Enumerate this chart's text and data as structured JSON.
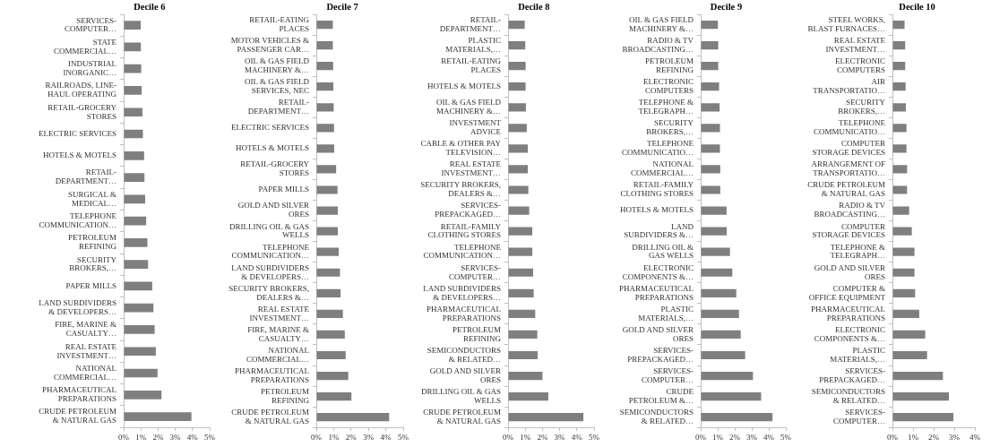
{
  "chart_data": [
    {
      "type": "bar",
      "orientation": "horizontal",
      "title": "Decile 6",
      "categories": [
        "SERVICES-COMPUTER…",
        "STATE COMMERCIAL…",
        "INDUSTRIAL INORGANIC…",
        "RAILROADS, LINE-HAUL OPERATING",
        "RETAIL-GROCERY STORES",
        "ELECTRIC SERVICES",
        "HOTELS & MOTELS",
        "RETAIL-DEPARTMENT…",
        "SURGICAL & MEDICAL…",
        "TELEPHONE COMMUNICATION…",
        "PETROLEUM REFINING",
        "SECURITY BROKERS,…",
        "PAPER MILLS",
        "LAND SUBDIVIDERS & DEVELOPERS…",
        "FIRE, MARINE & CASUALTY…",
        "REAL ESTATE INVESTMENT…",
        "NATIONAL COMMERCIAL…",
        "PHARMACEUTICAL PREPARATIONS",
        "CRUDE PETROLEUM & NATURAL GAS"
      ],
      "values": [
        0.99,
        1.0,
        1.02,
        1.05,
        1.09,
        1.12,
        1.19,
        1.21,
        1.25,
        1.31,
        1.38,
        1.42,
        1.66,
        1.73,
        1.8,
        1.87,
        1.97,
        2.2,
        3.94
      ],
      "color": "#7f7f7f",
      "xlim": [
        0,
        5
      ],
      "xticks": [
        {
          "value": 0,
          "label": "0%"
        },
        {
          "value": 1,
          "label": "1%"
        },
        {
          "value": 2,
          "label": "2%"
        },
        {
          "value": 3,
          "label": "3%"
        },
        {
          "value": 4,
          "label": "4%"
        },
        {
          "value": 5,
          "label": "5%"
        }
      ]
    },
    {
      "type": "bar",
      "orientation": "horizontal",
      "title": "Decile 7",
      "categories": [
        "RETAIL-EATING PLACES",
        "MOTOR VEHICLES & PASSENGER CAR…",
        "OIL & GAS FIELD MACHINERY &…",
        "OIL & GAS FIELD SERVICES, NEC",
        "RETAIL-DEPARTMENT…",
        "ELECTRIC SERVICES",
        "HOTELS & MOTELS",
        "RETAIL-GROCERY STORES",
        "PAPER MILLS",
        "GOLD AND SILVER ORES",
        "DRILLING OIL & GAS WELLS",
        "TELEPHONE COMMUNICATION…",
        "LAND SUBDIVIDERS & DEVELOPERS…",
        "SECURITY BROKERS, DEALERS &…",
        "REAL ESTATE INVESTMENT…",
        "FIRE, MARINE & CASUALTY…",
        "NATIONAL COMMERCIAL…",
        "PHARMACEUTICAL PREPARATIONS",
        "PETROLEUM REFINING",
        "CRUDE PETROLEUM & NATURAL GAS"
      ],
      "values": [
        0.95,
        0.95,
        0.97,
        0.98,
        1.0,
        1.02,
        1.03,
        1.14,
        1.22,
        1.24,
        1.24,
        1.29,
        1.36,
        1.4,
        1.53,
        1.64,
        1.69,
        1.84,
        2.02,
        4.19
      ],
      "color": "#7f7f7f",
      "xlim": [
        0,
        5
      ],
      "xticks": [
        {
          "value": 0,
          "label": "0%"
        },
        {
          "value": 1,
          "label": "1%"
        },
        {
          "value": 2,
          "label": "2%"
        },
        {
          "value": 3,
          "label": "3%"
        },
        {
          "value": 4,
          "label": "4%"
        },
        {
          "value": 5,
          "label": "5%"
        }
      ]
    },
    {
      "type": "bar",
      "orientation": "horizontal",
      "title": "Decile 8",
      "categories": [
        "RETAIL-DEPARTMENT…",
        "PLASTIC MATERIALS,…",
        "RETAIL-EATING PLACES",
        "HOTELS & MOTELS",
        "OIL & GAS FIELD MACHINERY &…",
        "INVESTMENT ADVICE",
        "CABLE & OTHER PAY TELEVISION…",
        "REAL ESTATE INVESTMENT…",
        "SECURITY BROKERS, DEALERS &…",
        "SERVICES-PREPACKAGED…",
        "RETAIL-FAMILY CLOTHING STORES",
        "TELEPHONE COMMUNICATION…",
        "SERVICES-COMPUTER…",
        "LAND SUBDIVIDERS & DEVELOPERS…",
        "PHARMACEUTICAL PREPARATIONS",
        "PETROLEUM REFINING",
        "SEMICONDUCTORS & RELATED…",
        "GOLD AND SILVER ORES",
        "DRILLING OIL & GAS WELLS",
        "CRUDE PETROLEUM & NATURAL GAS"
      ],
      "values": [
        0.97,
        1.0,
        1.02,
        1.02,
        1.04,
        1.09,
        1.15,
        1.15,
        1.18,
        1.23,
        1.41,
        1.41,
        1.46,
        1.49,
        1.58,
        1.7,
        1.72,
        2.0,
        2.34,
        4.38
      ],
      "color": "#7f7f7f",
      "xlim": [
        0,
        5
      ],
      "xticks": [
        {
          "value": 0,
          "label": "0%"
        },
        {
          "value": 1,
          "label": "1%"
        },
        {
          "value": 2,
          "label": "2%"
        },
        {
          "value": 3,
          "label": "3%"
        },
        {
          "value": 4,
          "label": "4%"
        },
        {
          "value": 5,
          "label": "5%"
        }
      ]
    },
    {
      "type": "bar",
      "orientation": "horizontal",
      "title": "Decile 9",
      "categories": [
        "OIL & GAS FIELD MACHINERY &…",
        "RADIO & TV BROADCASTING…",
        "PETROLEUM REFINING",
        "ELECTRONIC COMPUTERS",
        "TELEPHONE & TELEGRAPH…",
        "SECURITY BROKERS,…",
        "TELEPHONE COMMUNICATIO…",
        "NATIONAL COMMERCIAL…",
        "RETAIL-FAMILY CLOTHING STORES",
        "HOTELS & MOTELS",
        "LAND SUBDIVIDERS &…",
        "DRILLING OIL & GAS WELLS",
        "ELECTRONIC COMPONENTS &…",
        "PHARMACEUTICAL PREPARATIONS",
        "PLASTIC MATERIALS,…",
        "GOLD AND SILVER ORES",
        "SERVICES-PREPACKAGED…",
        "SERVICES-COMPUTER…",
        "CRUDE PETROLEUM &…",
        "SEMICONDUCTORS & RELATED…"
      ],
      "values": [
        1.01,
        1.03,
        1.03,
        1.08,
        1.11,
        1.13,
        1.13,
        1.15,
        1.15,
        1.52,
        1.53,
        1.72,
        1.86,
        2.09,
        2.25,
        2.35,
        2.61,
        3.07,
        3.55,
        4.22
      ],
      "color": "#7f7f7f",
      "xlim": [
        0,
        5
      ],
      "xticks": [
        {
          "value": 0,
          "label": "0%"
        },
        {
          "value": 1,
          "label": "1%"
        },
        {
          "value": 2,
          "label": "2%"
        },
        {
          "value": 3,
          "label": "3%"
        },
        {
          "value": 4,
          "label": "4%"
        },
        {
          "value": 5,
          "label": "5%"
        }
      ]
    },
    {
      "type": "bar",
      "orientation": "horizontal",
      "title": "Decile 10",
      "categories": [
        "STEEL WORKS, BLAST FURNACES…",
        "REAL ESTATE INVESTMENT…",
        "ELECTRONIC COMPUTERS",
        "AIR TRANSPORTATIO…",
        "SECURITY BROKERS,…",
        "TELEPHONE COMMUNICATIO…",
        "COMPUTER STORAGE DEVICES",
        "ARRANGEMENT OF TRANSPORTATIO…",
        "CRUDE PETROLEUM & NATURAL GAS",
        "RADIO & TV BROADCASTING…",
        "COMPUTER STORAGE DEVICES",
        "TELEPHONE & TELEGRAPH…",
        "GOLD AND SILVER ORES",
        "COMPUTER & OFFICE EQUIPMENT",
        "PHARMACEUTICAL PREPARATIONS",
        "ELECTRONIC COMPONENTS &…",
        "PLASTIC MATERIALS,…",
        "SERVICES-PREPACKAGED…",
        "SEMICONDUCTORS & RELATED…",
        "SERVICES-COMPUTER…"
      ],
      "values": [
        0.59,
        0.62,
        0.62,
        0.64,
        0.65,
        0.68,
        0.68,
        0.71,
        0.71,
        0.81,
        0.94,
        1.07,
        1.07,
        1.1,
        1.3,
        1.59,
        1.68,
        2.45,
        2.74,
        2.96
      ],
      "color": "#7f7f7f",
      "xlim": [
        0,
        4
      ],
      "xticks": [
        {
          "value": 0,
          "label": "0%"
        },
        {
          "value": 1,
          "label": "1%"
        },
        {
          "value": 2,
          "label": "2%"
        },
        {
          "value": 3,
          "label": "3%"
        },
        {
          "value": 4,
          "label": "4%"
        }
      ]
    }
  ]
}
